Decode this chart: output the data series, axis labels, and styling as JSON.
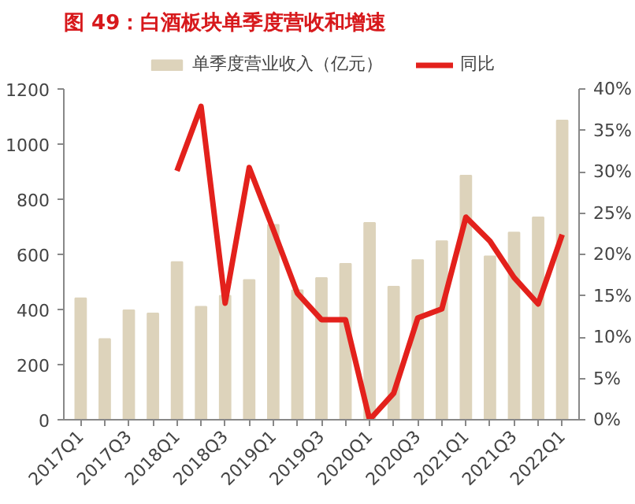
{
  "chart_data": {
    "type": "bar",
    "title": "图 49：白酒板块单季度营收和增速",
    "categories": [
      "2017Q1",
      null,
      "2017Q3",
      null,
      "2018Q1",
      null,
      "2018Q3",
      null,
      "2019Q1",
      null,
      "2019Q3",
      null,
      "2020Q1",
      null,
      "2020Q3",
      null,
      "2021Q1",
      null,
      "2021Q3",
      null,
      "2022Q1"
    ],
    "series": [
      {
        "name": "单季度营业收入（亿元）",
        "color": "#ddd3bb",
        "values": [
          441,
          293,
          397,
          386,
          572,
          410,
          450,
          507,
          707,
          470,
          514,
          566,
          714,
          483,
          579,
          648,
          886,
          593,
          679,
          734,
          1086
        ]
      },
      {
        "name": "同比",
        "type": "line",
        "axis": "y2",
        "color": "#e3211c",
        "values": [
          null,
          null,
          null,
          null,
          30.1,
          37.9,
          14.1,
          30.5,
          23,
          15.3,
          12.1,
          12.1,
          0,
          3.2,
          12.3,
          13.4,
          24.5,
          21.6,
          17.2,
          14.0,
          22.4
        ]
      }
    ],
    "ylim": [
      0,
      1200
    ],
    "yticks": [
      0,
      200,
      400,
      600,
      800,
      1000,
      1200
    ],
    "y2lim": [
      0,
      40
    ],
    "y2ticks": [
      {
        "value": 0,
        "label": "0%"
      },
      {
        "value": 5,
        "label": "5%"
      },
      {
        "value": 10,
        "label": "10%"
      },
      {
        "value": 15,
        "label": "15%"
      },
      {
        "value": 20,
        "label": "20%"
      },
      {
        "value": 25,
        "label": "25%"
      },
      {
        "value": 30,
        "label": "30%"
      },
      {
        "value": 35,
        "label": "35%"
      },
      {
        "value": 40,
        "label": "40%"
      }
    ],
    "legend": "top",
    "grid": false
  }
}
